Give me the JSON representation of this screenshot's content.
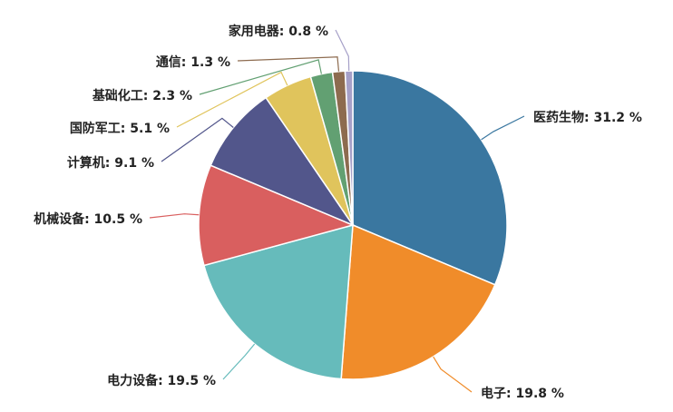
{
  "chart_data": {
    "type": "pie",
    "labels": [
      "医药生物: 31.2 %",
      "电子: 19.8 %",
      "电力设备: 19.5 %",
      "机械设备: 10.5 %",
      "计算机: 9.1 %",
      "国防军工: 5.1 %",
      "基础化工: 2.3 %",
      "通信: 1.3 %",
      "家用电器: 0.8 %"
    ],
    "values": [
      31.2,
      19.8,
      19.5,
      10.5,
      9.1,
      5.1,
      2.3,
      1.3,
      0.8
    ],
    "colors": [
      "#3a77a0",
      "#f08c2a",
      "#66bbbb",
      "#d95f5f",
      "#52568b",
      "#e0c45c",
      "#62a072",
      "#8d6b4f",
      "#a6a0c8"
    ]
  }
}
